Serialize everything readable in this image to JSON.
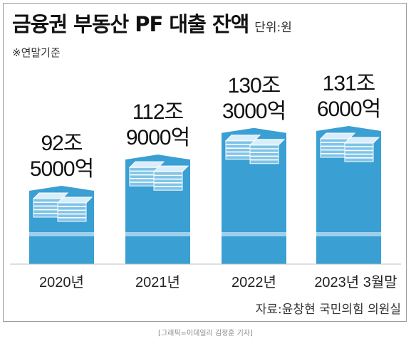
{
  "header": {
    "title": "금융권 부동산 PF 대출 잔액",
    "unit": "단위:원",
    "note": "※연말기준"
  },
  "footer": {
    "source": "자료:윤창현 국민의힘 의원실",
    "credit": "[그래픽=이데일리 김정훈 기자]"
  },
  "colors": {
    "bar": "#3a9fd3",
    "bar_band": "#9fd0eb",
    "money_top": "#d9eef9",
    "money_side": "#7fc4e8",
    "money_stripe": "#ffffff"
  },
  "chart_data": {
    "type": "bar",
    "title": "금융권 부동산 PF 대출 잔액",
    "xlabel": "",
    "ylabel": "",
    "categories": [
      "2020년",
      "2021년",
      "2022년",
      "2023년 3월말"
    ],
    "values": [
      92.5,
      112.9,
      130.3,
      131.6
    ],
    "value_labels": [
      [
        "92조",
        "5000억"
      ],
      [
        "112조",
        "9000억"
      ],
      [
        "130조",
        "3000억"
      ],
      [
        "131조",
        "6000억"
      ]
    ],
    "grid": false,
    "legend": "none"
  }
}
